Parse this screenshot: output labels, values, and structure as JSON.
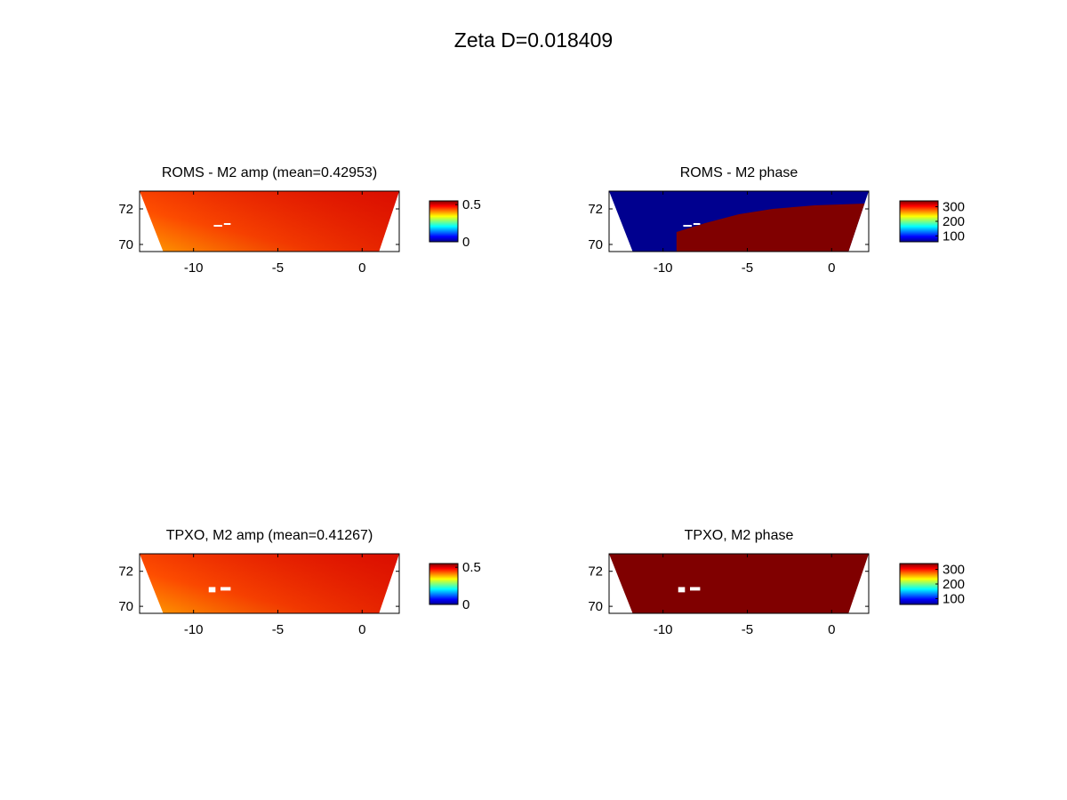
{
  "figure": {
    "title": "Zeta    D=0.018409"
  },
  "colors": {
    "amp_fill_high": "#e11400",
    "amp_fill_low": "#ffa000",
    "phase_low": "#00008f",
    "phase_high": "#800000",
    "land_mask": "#ffffff",
    "jet": [
      "#00008f",
      "#0000ff",
      "#0080ff",
      "#00ffff",
      "#80ff80",
      "#ffff00",
      "#ff8000",
      "#ff0000",
      "#800000"
    ]
  },
  "chart_data": [
    {
      "type": "heatmap",
      "title": "ROMS - M2 amp (mean=0.42953)",
      "variable": "M2 amplitude",
      "mean": 0.42953,
      "xlim": [
        -13.2,
        2.2
      ],
      "ylim": [
        69.6,
        73.0
      ],
      "xticks": [
        -10,
        -5,
        0
      ],
      "yticks": [
        70,
        72
      ],
      "colorbar": {
        "clim": [
          0,
          0.55
        ],
        "ticks": [
          0,
          0.5
        ],
        "colormap": "jet"
      },
      "fill": "amp",
      "amp_range": [
        0.35,
        0.53
      ],
      "islands": [
        {
          "lon": [
            -8.8,
            -8.3
          ],
          "lat": [
            71.0,
            71.1
          ]
        },
        {
          "lon": [
            -8.2,
            -7.8
          ],
          "lat": [
            71.1,
            71.2
          ]
        }
      ]
    },
    {
      "type": "heatmap",
      "title": "ROMS - M2 phase",
      "variable": "M2 phase",
      "xlim": [
        -13.2,
        2.2
      ],
      "ylim": [
        69.6,
        73.0
      ],
      "xticks": [
        -10,
        -5,
        0
      ],
      "yticks": [
        70,
        72
      ],
      "colorbar": {
        "clim": [
          60,
          340
        ],
        "ticks": [
          100,
          200,
          300
        ],
        "colormap": "jet"
      },
      "fill": "phase-split",
      "phase_low_value": 60,
      "phase_high_value": 340,
      "boundary": [
        [
          -9.2,
          70.7
        ],
        [
          -7.5,
          71.2
        ],
        [
          -5.5,
          71.7
        ],
        [
          -3.5,
          72.0
        ],
        [
          -1.0,
          72.2
        ],
        [
          2.0,
          72.3
        ]
      ],
      "islands": [
        {
          "lon": [
            -8.8,
            -8.3
          ],
          "lat": [
            71.0,
            71.1
          ]
        },
        {
          "lon": [
            -8.2,
            -7.8
          ],
          "lat": [
            71.1,
            71.2
          ]
        }
      ]
    },
    {
      "type": "heatmap",
      "title": "TPXO, M2 amp (mean=0.41267)",
      "variable": "M2 amplitude",
      "mean": 0.41267,
      "xlim": [
        -13.2,
        2.2
      ],
      "ylim": [
        69.6,
        73.0
      ],
      "xticks": [
        -10,
        -5,
        0
      ],
      "yticks": [
        70,
        72
      ],
      "colorbar": {
        "clim": [
          0,
          0.55
        ],
        "ticks": [
          0,
          0.5
        ],
        "colormap": "jet"
      },
      "fill": "amp",
      "amp_range": [
        0.33,
        0.53
      ],
      "islands": [
        {
          "lon": [
            -9.1,
            -8.7
          ],
          "lat": [
            70.8,
            71.1
          ]
        },
        {
          "lon": [
            -8.4,
            -7.8
          ],
          "lat": [
            70.9,
            71.1
          ]
        }
      ]
    },
    {
      "type": "heatmap",
      "title": "TPXO, M2 phase",
      "variable": "M2 phase",
      "xlim": [
        -13.2,
        2.2
      ],
      "ylim": [
        69.6,
        73.0
      ],
      "xticks": [
        -10,
        -5,
        0
      ],
      "yticks": [
        70,
        72
      ],
      "colorbar": {
        "clim": [
          60,
          340
        ],
        "ticks": [
          100,
          200,
          300
        ],
        "colormap": "jet"
      },
      "fill": "phase-high",
      "phase_high_value": 340,
      "islands": [
        {
          "lon": [
            -9.1,
            -8.7
          ],
          "lat": [
            70.8,
            71.1
          ]
        },
        {
          "lon": [
            -8.4,
            -7.8
          ],
          "lat": [
            70.9,
            71.1
          ]
        }
      ]
    }
  ]
}
